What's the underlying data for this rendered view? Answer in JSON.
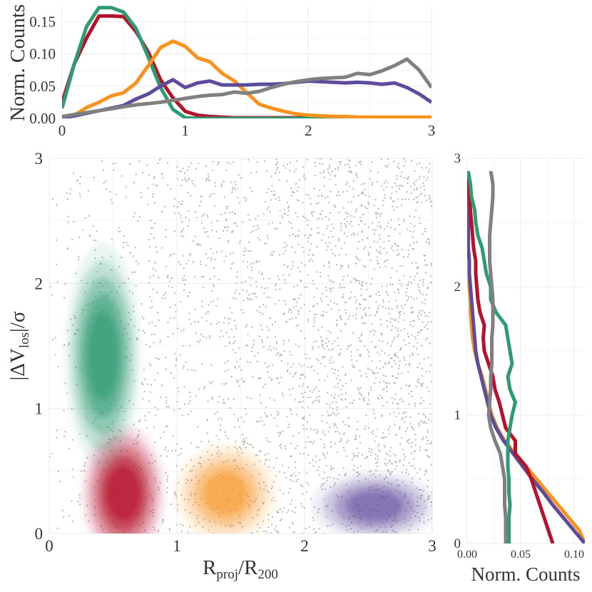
{
  "colors": {
    "grid": "#ebebeb",
    "scatter": "#b4b4b4",
    "red": "#b5122b",
    "orange": "#f7931e",
    "purple": "#5e4b9b",
    "green": "#2e9b72",
    "gray": "#808080"
  },
  "chart_data": [
    {
      "panel": "top",
      "type": "line",
      "ylabel": "Norm. Counts",
      "xlim": [
        0,
        3
      ],
      "ylim": [
        0,
        0.175
      ],
      "x_ticks": [
        "0",
        "1",
        "2",
        "3"
      ],
      "x_tick_values": [
        0,
        1,
        2,
        3
      ],
      "y_ticks": [
        "0.00",
        "0.05",
        "0.10",
        "0.15"
      ],
      "y_tick_values": [
        0,
        0.05,
        0.1,
        0.15
      ],
      "grid": true,
      "series": [
        {
          "color": "red",
          "x": [
            0,
            0.1,
            0.2,
            0.3,
            0.4,
            0.5,
            0.6,
            0.7,
            0.8,
            0.9,
            1.0,
            1.1,
            1.2,
            1.3,
            1.4,
            1.5,
            1.6,
            1.7,
            1.8,
            1.9,
            2.0,
            2.1,
            2.2,
            2.3,
            2.4,
            2.5,
            2.6,
            2.7,
            2.8,
            2.9,
            3.0
          ],
          "values": [
            0.025,
            0.085,
            0.125,
            0.159,
            0.159,
            0.158,
            0.135,
            0.103,
            0.06,
            0.032,
            0.011,
            0.005,
            0.003,
            0.002,
            0.001,
            0.001,
            0.001,
            0.001,
            0.001,
            0.001,
            0.001,
            0.001,
            0.001,
            0.001,
            0.001,
            0.001,
            0.001,
            0.001,
            0.001,
            0.001,
            0.001
          ]
        },
        {
          "color": "green",
          "x": [
            0,
            0.1,
            0.2,
            0.3,
            0.4,
            0.5,
            0.6,
            0.7,
            0.8,
            0.9,
            1.0,
            1.1,
            1.2,
            1.3,
            1.4,
            1.5,
            1.6,
            1.7,
            1.8,
            1.9,
            2.0,
            2.1,
            2.2,
            2.3,
            2.4,
            2.5,
            2.6,
            2.7,
            2.8,
            2.9,
            3.0
          ],
          "values": [
            0.016,
            0.085,
            0.143,
            0.172,
            0.172,
            0.165,
            0.14,
            0.095,
            0.048,
            0.014,
            0.001,
            0.0,
            0.0,
            0.0,
            0.0,
            0.0,
            0.0,
            0.0,
            0.0,
            0.0,
            0.0,
            0.0,
            0.0,
            0.0,
            0.0,
            0.0,
            0.0,
            0.0,
            0.0,
            0.0,
            0.0
          ]
        },
        {
          "color": "orange",
          "x": [
            0,
            0.1,
            0.2,
            0.3,
            0.4,
            0.5,
            0.6,
            0.7,
            0.8,
            0.9,
            1.0,
            1.1,
            1.2,
            1.3,
            1.4,
            1.5,
            1.6,
            1.7,
            1.8,
            1.9,
            2.0,
            2.1,
            2.2,
            2.3,
            2.4,
            2.5,
            2.6,
            2.7,
            2.8,
            2.9,
            3.0
          ],
          "values": [
            0.002,
            0.005,
            0.017,
            0.025,
            0.035,
            0.04,
            0.055,
            0.082,
            0.11,
            0.12,
            0.112,
            0.094,
            0.088,
            0.07,
            0.058,
            0.04,
            0.022,
            0.016,
            0.011,
            0.007,
            0.005,
            0.004,
            0.003,
            0.003,
            0.002,
            0.002,
            0.002,
            0.002,
            0.002,
            0.002,
            0.002
          ]
        },
        {
          "color": "purple",
          "x": [
            0,
            0.1,
            0.2,
            0.3,
            0.4,
            0.5,
            0.6,
            0.7,
            0.8,
            0.9,
            1.0,
            1.1,
            1.2,
            1.3,
            1.4,
            1.5,
            1.6,
            1.7,
            1.8,
            1.9,
            2.0,
            2.1,
            2.2,
            2.3,
            2.4,
            2.5,
            2.6,
            2.7,
            2.8,
            2.9,
            3.0
          ],
          "values": [
            0.001,
            0.004,
            0.008,
            0.012,
            0.016,
            0.02,
            0.03,
            0.038,
            0.05,
            0.06,
            0.048,
            0.055,
            0.058,
            0.052,
            0.052,
            0.052,
            0.053,
            0.053,
            0.054,
            0.056,
            0.058,
            0.057,
            0.056,
            0.055,
            0.056,
            0.055,
            0.053,
            0.055,
            0.048,
            0.038,
            0.025
          ]
        },
        {
          "color": "gray",
          "x": [
            0,
            0.1,
            0.2,
            0.3,
            0.4,
            0.5,
            0.6,
            0.7,
            0.8,
            0.9,
            1.0,
            1.1,
            1.2,
            1.3,
            1.4,
            1.5,
            1.6,
            1.7,
            1.8,
            1.9,
            2.0,
            2.1,
            2.2,
            2.3,
            2.4,
            2.5,
            2.6,
            2.7,
            2.8,
            2.9,
            3.0
          ],
          "values": [
            0.003,
            0.006,
            0.009,
            0.012,
            0.015,
            0.018,
            0.021,
            0.023,
            0.025,
            0.028,
            0.031,
            0.034,
            0.036,
            0.037,
            0.041,
            0.039,
            0.042,
            0.048,
            0.053,
            0.057,
            0.06,
            0.062,
            0.063,
            0.064,
            0.07,
            0.068,
            0.074,
            0.082,
            0.092,
            0.075,
            0.048
          ]
        }
      ]
    },
    {
      "panel": "main",
      "type": "scatter",
      "xlabel": "R_proj/R_200",
      "ylabel": "|ΔV_los|/σ",
      "xlim": [
        0,
        3
      ],
      "ylim": [
        0,
        3
      ],
      "x_ticks": [
        "0",
        "1",
        "2",
        "3"
      ],
      "x_tick_values": [
        0,
        1,
        2,
        3
      ],
      "y_ticks": [
        "0",
        "1",
        "2",
        "3"
      ],
      "y_tick_values": [
        0,
        1,
        2,
        3
      ],
      "grid": true,
      "density_contours": [
        {
          "color": "red",
          "center": [
            0.58,
            0.32
          ],
          "spread": [
            0.33,
            0.55
          ],
          "levels": 5
        },
        {
          "color": "green",
          "center": [
            0.42,
            1.42
          ],
          "spread": [
            0.3,
            0.9
          ],
          "levels": 5
        },
        {
          "color": "orange",
          "center": [
            1.38,
            0.32
          ],
          "spread": [
            0.4,
            0.4
          ],
          "levels": 4
        },
        {
          "color": "purple",
          "center": [
            2.55,
            0.22
          ],
          "spread": [
            0.5,
            0.28
          ],
          "levels": 4
        }
      ]
    },
    {
      "panel": "right",
      "type": "line",
      "xlabel": "Norm. Counts",
      "xlim": [
        0,
        0.11
      ],
      "ylim": [
        0,
        3
      ],
      "x_ticks": [
        "0.00",
        "0.05",
        "0.10"
      ],
      "x_tick_values": [
        0,
        0.05,
        0.1
      ],
      "y_ticks": [
        "0",
        "1",
        "2",
        "3"
      ],
      "y_tick_values": [
        0,
        1,
        2,
        3
      ],
      "grid": true,
      "series": [
        {
          "color": "orange",
          "y": [
            0,
            0.1,
            0.2,
            0.3,
            0.4,
            0.5,
            0.6,
            0.7,
            0.8,
            0.9,
            1.0,
            1.1,
            1.2,
            1.3,
            1.4,
            1.5,
            1.6,
            1.7,
            1.8,
            1.9,
            2.0,
            2.1,
            2.2,
            2.3,
            2.4,
            2.5,
            2.6,
            2.7,
            2.8,
            2.9
          ],
          "values": [
            0.11,
            0.105,
            0.095,
            0.085,
            0.075,
            0.065,
            0.055,
            0.045,
            0.035,
            0.028,
            0.023,
            0.02,
            0.017,
            0.014,
            0.01,
            0.007,
            0.005,
            0.004,
            0.003,
            0.003,
            0.002,
            0.002,
            0.002,
            0.001,
            0.001,
            0.001,
            0.001,
            0.001,
            0.001,
            0.001
          ]
        },
        {
          "color": "purple",
          "y": [
            0,
            0.1,
            0.2,
            0.3,
            0.4,
            0.5,
            0.6,
            0.7,
            0.8,
            0.9,
            1.0,
            1.1,
            1.2,
            1.3,
            1.4,
            1.5,
            1.6,
            1.7,
            1.8,
            1.9,
            2.0,
            2.1,
            2.2,
            2.3,
            2.4,
            2.5,
            2.6,
            2.7,
            2.8,
            2.9
          ],
          "values": [
            0.11,
            0.1,
            0.09,
            0.08,
            0.071,
            0.061,
            0.052,
            0.043,
            0.034,
            0.027,
            0.022,
            0.019,
            0.016,
            0.013,
            0.01,
            0.008,
            0.007,
            0.006,
            0.005,
            0.004,
            0.003,
            0.002,
            0.002,
            0.001,
            0.001,
            0.001,
            0.001,
            0.001,
            0.001,
            0.001
          ]
        },
        {
          "color": "red",
          "y": [
            0,
            0.1,
            0.2,
            0.3,
            0.4,
            0.5,
            0.6,
            0.7,
            0.8,
            0.9,
            1.0,
            1.1,
            1.2,
            1.3,
            1.4,
            1.5,
            1.6,
            1.7,
            1.8,
            1.9,
            2.0,
            2.1,
            2.2,
            2.3,
            2.4,
            2.5,
            2.6,
            2.7,
            2.8,
            2.9
          ],
          "values": [
            0.08,
            0.076,
            0.072,
            0.068,
            0.064,
            0.06,
            0.055,
            0.045,
            0.045,
            0.036,
            0.033,
            0.03,
            0.026,
            0.024,
            0.02,
            0.016,
            0.015,
            0.016,
            0.012,
            0.01,
            0.009,
            0.008,
            0.008,
            0.006,
            0.005,
            0.004,
            0.003,
            0.002,
            0.001,
            0.0
          ]
        },
        {
          "color": "green",
          "y": [
            0,
            0.1,
            0.2,
            0.3,
            0.4,
            0.5,
            0.6,
            0.7,
            0.8,
            0.9,
            1.0,
            1.1,
            1.2,
            1.3,
            1.4,
            1.5,
            1.6,
            1.7,
            1.8,
            1.9,
            2.0,
            2.1,
            2.2,
            2.3,
            2.4,
            2.5,
            2.6,
            2.7,
            2.8,
            2.9
          ],
          "values": [
            0.039,
            0.039,
            0.039,
            0.04,
            0.039,
            0.039,
            0.038,
            0.038,
            0.038,
            0.04,
            0.042,
            0.045,
            0.04,
            0.038,
            0.042,
            0.04,
            0.038,
            0.036,
            0.027,
            0.022,
            0.022,
            0.018,
            0.016,
            0.014,
            0.01,
            0.008,
            0.007,
            0.004,
            0.003,
            0.001
          ]
        },
        {
          "color": "gray",
          "y": [
            0,
            0.1,
            0.2,
            0.3,
            0.4,
            0.5,
            0.6,
            0.7,
            0.8,
            0.9,
            1.0,
            1.1,
            1.2,
            1.3,
            1.4,
            1.5,
            1.6,
            1.7,
            1.8,
            1.9,
            2.0,
            2.1,
            2.2,
            2.3,
            2.4,
            2.5,
            2.6,
            2.7,
            2.8,
            2.9
          ],
          "values": [
            0.036,
            0.036,
            0.036,
            0.035,
            0.035,
            0.035,
            0.033,
            0.031,
            0.026,
            0.022,
            0.02,
            0.021,
            0.022,
            0.022,
            0.023,
            0.023,
            0.023,
            0.024,
            0.024,
            0.024,
            0.023,
            0.022,
            0.021,
            0.021,
            0.021,
            0.022,
            0.023,
            0.024,
            0.024,
            0.022
          ]
        }
      ]
    }
  ]
}
